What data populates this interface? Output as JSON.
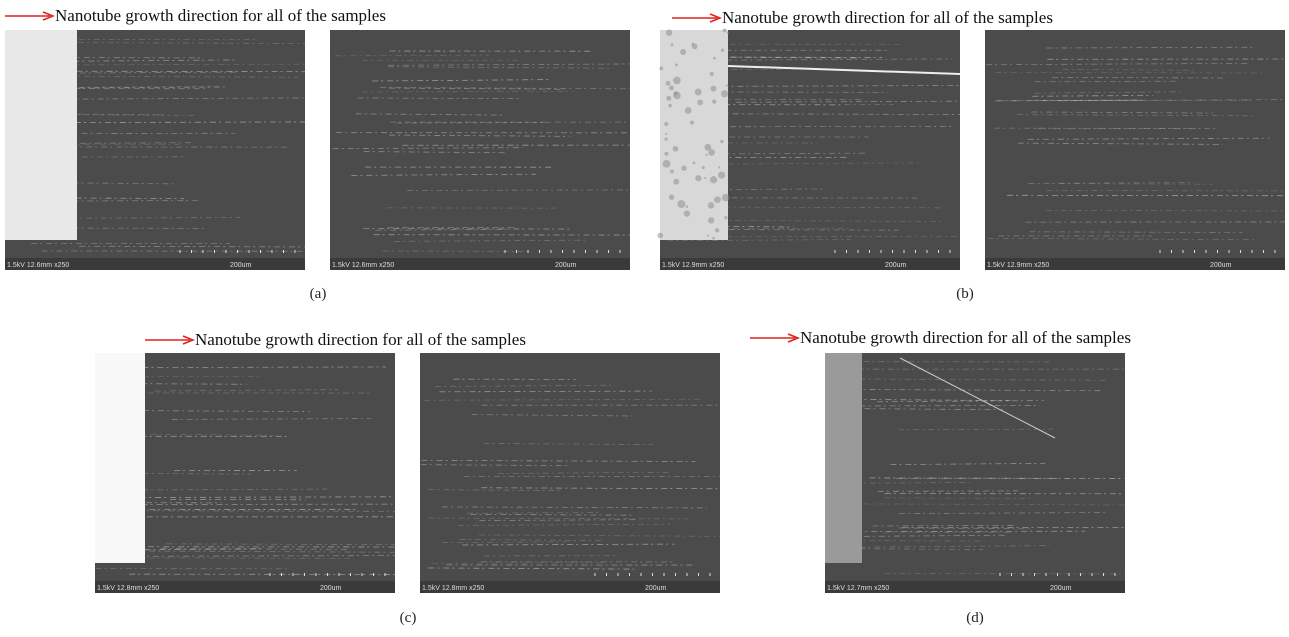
{
  "panels": [
    {
      "heading": "Nanotube growth direction for all of the samples",
      "label": "(a)",
      "images": [
        {
          "info": "1.5kV 12.6mm x250",
          "scale": "200um"
        },
        {
          "info": "1.5kV 12.6mm x250",
          "scale": "200um"
        }
      ]
    },
    {
      "heading": "Nanotube growth direction for all of the samples",
      "label": "(b)",
      "images": [
        {
          "info": "1.5kV 12.9mm x250",
          "scale": "200um"
        },
        {
          "info": "1.5kV 12.9mm x250",
          "scale": "200um"
        }
      ]
    },
    {
      "heading": "Nanotube growth direction for all of the samples",
      "label": "(c)",
      "images": [
        {
          "info": "1.5kV 12.8mm x250",
          "scale": "200um"
        },
        {
          "info": "1.5kV 12.8mm x250",
          "scale": "200um"
        }
      ]
    },
    {
      "heading": "Nanotube growth direction for all of the samples",
      "label": "(d)",
      "images": [
        {
          "info": "1.5kV 12.7mm x250",
          "scale": "200um"
        }
      ]
    }
  ]
}
